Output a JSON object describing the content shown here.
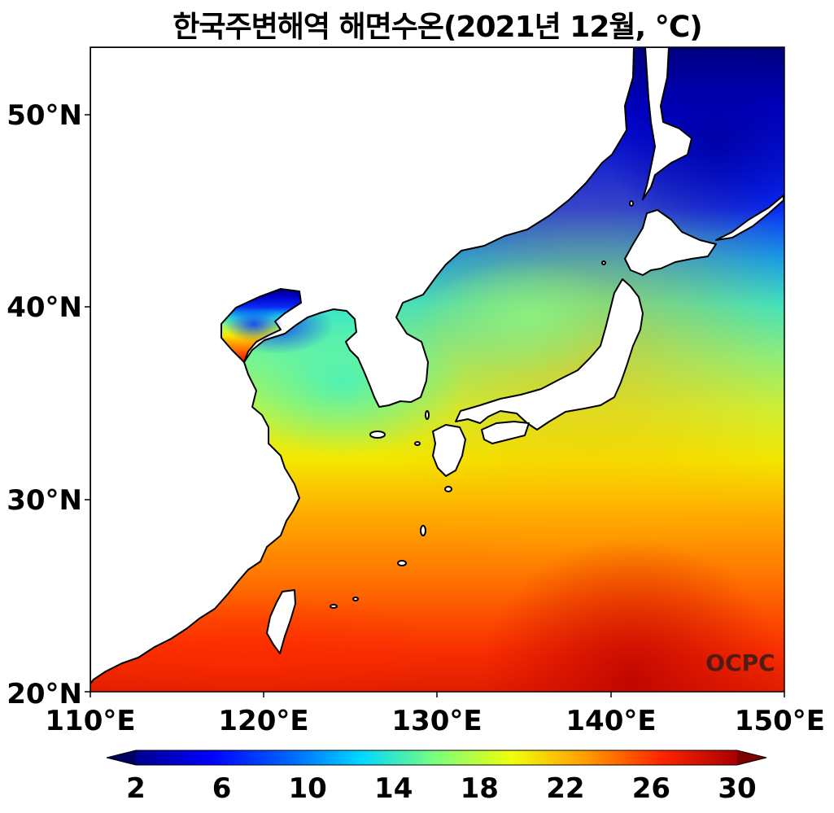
{
  "title": "한국주변해역 해면수온(2021년 12월, ℃)",
  "map": {
    "lat_ticks": [
      "50°N",
      "40°N",
      "30°N",
      "20°N"
    ],
    "lon_ticks": [
      "110°E",
      "120°E",
      "130°E",
      "140°E",
      "150°E"
    ],
    "lon_range": [
      110,
      150
    ],
    "lat_range": [
      20,
      53.5
    ],
    "watermark": "OCPC"
  },
  "colorbar": {
    "labels": [
      "2",
      "6",
      "10",
      "14",
      "18",
      "22",
      "26",
      "30"
    ],
    "range": [
      2,
      30
    ],
    "colormap": "jet",
    "extend": "both"
  },
  "colors": {
    "land": "#ffffff",
    "coast": "#000000"
  }
}
